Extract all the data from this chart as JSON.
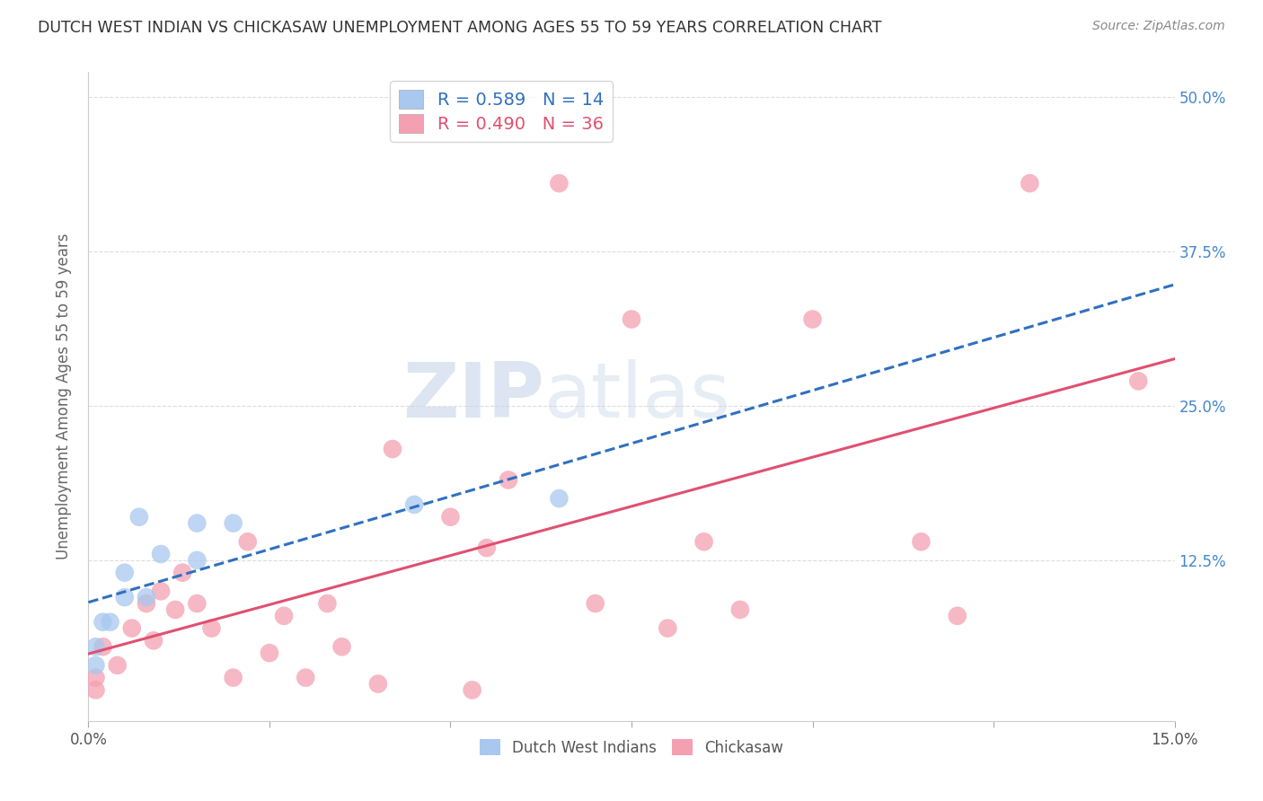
{
  "title": "DUTCH WEST INDIAN VS CHICKASAW UNEMPLOYMENT AMONG AGES 55 TO 59 YEARS CORRELATION CHART",
  "source": "Source: ZipAtlas.com",
  "ylabel": "Unemployment Among Ages 55 to 59 years",
  "legend_label1": "Dutch West Indians",
  "legend_label2": "Chickasaw",
  "r1": "R = 0.589",
  "n1": "N = 14",
  "r2": "R = 0.490",
  "n2": "N = 36",
  "color_blue": "#a8c8f0",
  "color_pink": "#f4a0b0",
  "color_blue_line": "#3070c0",
  "color_pink_line": "#e05070",
  "watermark_zip": "ZIP",
  "watermark_atlas": "atlas",
  "dutch_west_x": [
    0.001,
    0.001,
    0.002,
    0.003,
    0.005,
    0.005,
    0.007,
    0.008,
    0.01,
    0.015,
    0.015,
    0.02,
    0.045,
    0.065
  ],
  "dutch_west_y": [
    0.04,
    0.055,
    0.075,
    0.075,
    0.095,
    0.115,
    0.16,
    0.095,
    0.13,
    0.125,
    0.155,
    0.155,
    0.17,
    0.175
  ],
  "chickasaw_x": [
    0.001,
    0.001,
    0.002,
    0.004,
    0.006,
    0.008,
    0.009,
    0.01,
    0.012,
    0.013,
    0.015,
    0.017,
    0.02,
    0.022,
    0.025,
    0.027,
    0.03,
    0.033,
    0.035,
    0.04,
    0.042,
    0.05,
    0.053,
    0.055,
    0.058,
    0.065,
    0.07,
    0.075,
    0.08,
    0.085,
    0.09,
    0.1,
    0.115,
    0.12,
    0.13,
    0.145
  ],
  "chickasaw_y": [
    0.02,
    0.03,
    0.055,
    0.04,
    0.07,
    0.09,
    0.06,
    0.1,
    0.085,
    0.115,
    0.09,
    0.07,
    0.03,
    0.14,
    0.05,
    0.08,
    0.03,
    0.09,
    0.055,
    0.025,
    0.215,
    0.16,
    0.02,
    0.135,
    0.19,
    0.43,
    0.09,
    0.32,
    0.07,
    0.14,
    0.085,
    0.32,
    0.14,
    0.08,
    0.43,
    0.27
  ],
  "xmin": 0.0,
  "xmax": 0.15,
  "ymin": -0.005,
  "ymax": 0.52,
  "xtick_positions": [
    0.0,
    0.025,
    0.05,
    0.075,
    0.1,
    0.125,
    0.15
  ],
  "ytick_values": [
    0.0,
    0.125,
    0.25,
    0.375,
    0.5
  ],
  "ytick_labels": [
    "",
    "12.5%",
    "25.0%",
    "37.5%",
    "50.0%"
  ],
  "background": "#ffffff",
  "grid_color": "#dddddd"
}
